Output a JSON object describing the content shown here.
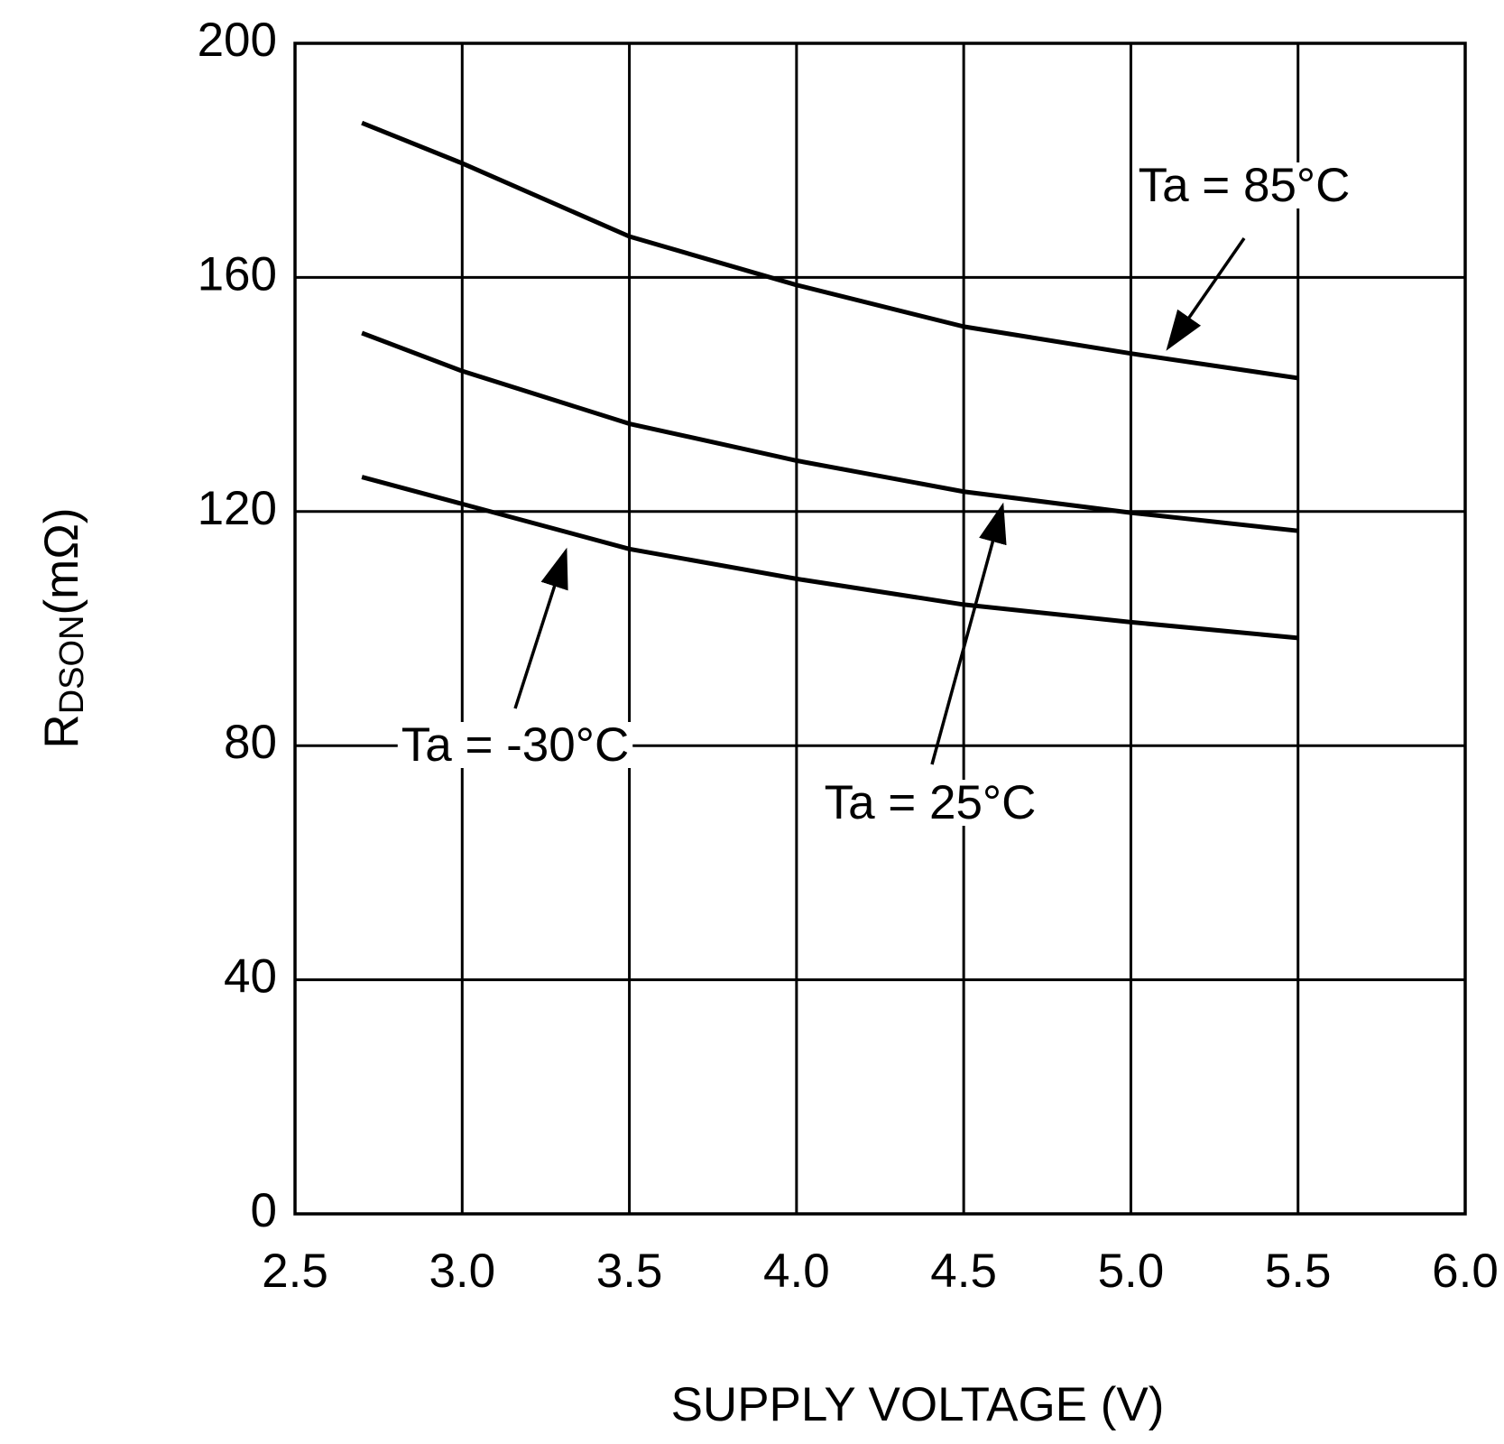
{
  "chart_data": {
    "type": "line",
    "x": [
      2.7,
      3.0,
      3.5,
      4.0,
      4.5,
      5.0,
      5.5
    ],
    "series": [
      {
        "name": "Ta = 85°C",
        "color": "#000000",
        "values": [
          186.4,
          179.5,
          167,
          158.7,
          151.6,
          147,
          142.8
        ]
      },
      {
        "name": "Ta = 25°C",
        "color": "#000000",
        "values": [
          150.5,
          144,
          135,
          128.7,
          123.4,
          119.8,
          116.7
        ]
      },
      {
        "name": "Ta = -30°C",
        "color": "#000000",
        "values": [
          125.9,
          121.3,
          113.6,
          108.5,
          104.1,
          101.1,
          98.4
        ]
      }
    ],
    "xlabel": "SUPPLY VOLTAGE (V)",
    "ylabel": [
      "R",
      "DSON",
      "(mΩ)"
    ],
    "xlim": [
      2.5,
      6.0
    ],
    "xticks": [
      2.5,
      {
        "value": 3.0,
        "label": "3.0"
      },
      3.5,
      {
        "value": 4.0,
        "label": "4.0"
      },
      4.5,
      {
        "value": 5.0,
        "label": "5.0"
      },
      5.5,
      {
        "value": 6.0,
        "label": "6.0"
      }
    ],
    "ylim": [
      0,
      200
    ],
    "yticks": [
      0,
      40,
      80,
      120,
      160,
      200
    ],
    "grid": true
  }
}
